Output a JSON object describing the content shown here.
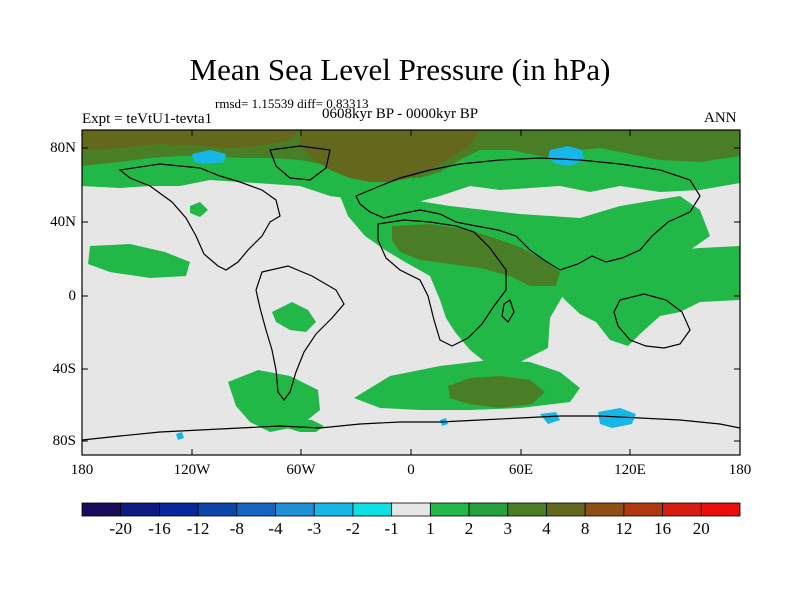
{
  "title": "Mean Sea Level Pressure (in hPa)",
  "stats": "rmsd= 1.15539 diff= 0.83313",
  "period": "0608kyr BP - 0000kyr BP",
  "experiment": "Expt = teVtU1-tevta1",
  "season": "ANN",
  "axes": {
    "lat_ticks": [
      "80N",
      "40N",
      "0",
      "40S",
      "80S"
    ],
    "lon_ticks": [
      "180",
      "120W",
      "60W",
      "0",
      "60E",
      "120E",
      "180"
    ]
  },
  "colorbar": {
    "labels": [
      "-20",
      "-16",
      "-12",
      "-8",
      "-4",
      "-3",
      "-2",
      "-1",
      "1",
      "2",
      "3",
      "4",
      "8",
      "12",
      "16",
      "20"
    ],
    "colors": [
      "#1a0a5c",
      "#0d1a80",
      "#06289a",
      "#0b45a8",
      "#1465c0",
      "#1f8fd6",
      "#16b6e6",
      "#10dfe6",
      "#e6e6e6",
      "#22b848",
      "#27a040",
      "#4a7e26",
      "#63681c",
      "#8b5012",
      "#b0380e",
      "#d41f10",
      "#ea0e0c"
    ]
  },
  "map_colors": {
    "neutral": "#e6e6e6",
    "plus_1_2": "#22b848",
    "plus_3_4": "#4a7e26",
    "plus_4_8": "#63681c",
    "minus_2_3": "#16b6e6"
  }
}
